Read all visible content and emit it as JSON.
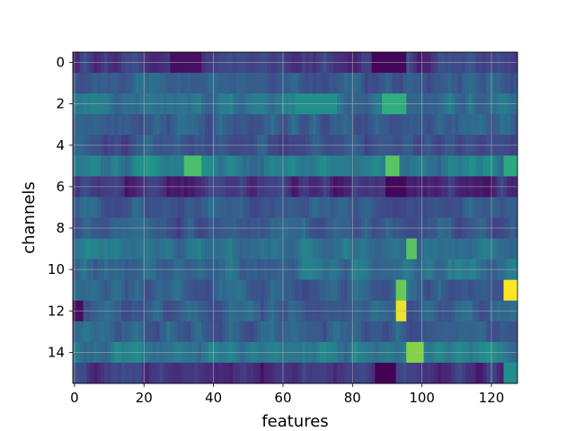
{
  "chart_data": {
    "type": "heatmap",
    "colormap": "viridis",
    "xlabel": "features",
    "ylabel": "channels",
    "n_rows": 16,
    "n_cols": 128,
    "xlim": [
      0,
      127
    ],
    "ylim": [
      15,
      0
    ],
    "x_ticks": [
      0,
      20,
      40,
      60,
      80,
      100,
      120
    ],
    "y_ticks": [
      0,
      2,
      4,
      6,
      8,
      10,
      12,
      14
    ],
    "grid": true,
    "value_range": [
      0,
      1
    ],
    "row_base_values": [
      0.22,
      0.38,
      0.46,
      0.36,
      0.32,
      0.52,
      0.18,
      0.36,
      0.34,
      0.48,
      0.44,
      0.38,
      0.36,
      0.38,
      0.5,
      0.2
    ],
    "features": [
      {
        "row": 0,
        "col_start": 28,
        "col_end": 36,
        "value": 0.05
      },
      {
        "row": 0,
        "col_start": 86,
        "col_end": 95,
        "value": 0.02
      },
      {
        "row": 2,
        "col_start": 89,
        "col_end": 95,
        "value": 0.72
      },
      {
        "row": 2,
        "col_start": 64,
        "col_end": 75,
        "value": 0.62
      },
      {
        "row": 5,
        "col_start": 32,
        "col_end": 36,
        "value": 0.78
      },
      {
        "row": 5,
        "col_start": 90,
        "col_end": 93,
        "value": 0.8
      },
      {
        "row": 5,
        "col_start": 124,
        "col_end": 127,
        "value": 0.7
      },
      {
        "row": 6,
        "col_start": 90,
        "col_end": 95,
        "value": 0.02
      },
      {
        "row": 9,
        "col_start": 96,
        "col_end": 98,
        "value": 0.8
      },
      {
        "row": 11,
        "col_start": 124,
        "col_end": 127,
        "value": 1.0
      },
      {
        "row": 11,
        "col_start": 93,
        "col_end": 95,
        "value": 0.82
      },
      {
        "row": 12,
        "col_start": 93,
        "col_end": 95,
        "value": 0.98
      },
      {
        "row": 12,
        "col_start": 0,
        "col_end": 2,
        "value": 0.05
      },
      {
        "row": 14,
        "col_start": 96,
        "col_end": 100,
        "value": 0.86
      },
      {
        "row": 15,
        "col_start": 87,
        "col_end": 92,
        "value": 0.0
      },
      {
        "row": 15,
        "col_start": 124,
        "col_end": 127,
        "value": 0.6
      }
    ],
    "tick_labels": {
      "x": [
        "0",
        "20",
        "40",
        "60",
        "80",
        "100",
        "120"
      ],
      "y": [
        "0",
        "2",
        "4",
        "6",
        "8",
        "10",
        "12",
        "14"
      ]
    }
  }
}
